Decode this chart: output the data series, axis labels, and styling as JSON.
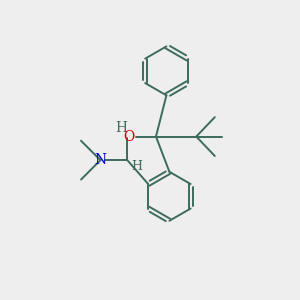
{
  "bg_color": "#eeeeee",
  "bond_color": "#3d6b5e",
  "O_color": "#cc0000",
  "N_color": "#0000cc",
  "H_color": "#3d6b5e",
  "line_width": 1.4,
  "font_size": 10,
  "fig_w": 3.0,
  "fig_h": 3.0,
  "dpi": 100,
  "xlim": [
    0,
    10
  ],
  "ylim": [
    0,
    10
  ]
}
